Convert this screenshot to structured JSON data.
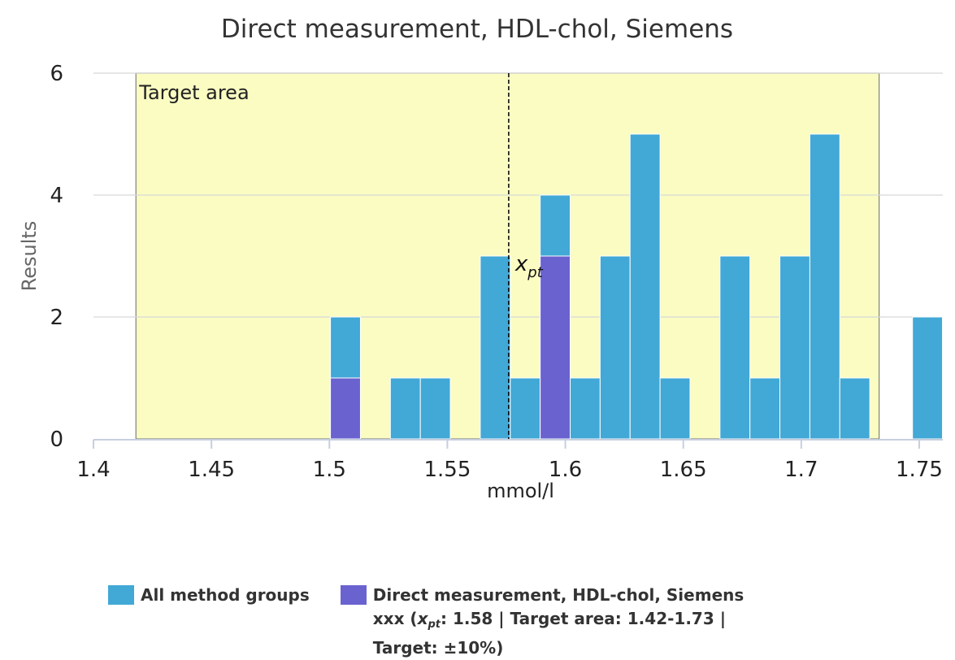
{
  "chart_data": {
    "type": "bar",
    "title": "Direct measurement, HDL-chol, Siemens",
    "xlabel": "mmol/l",
    "ylabel": "Results",
    "xlim": [
      1.4,
      1.76
    ],
    "ylim": [
      0,
      6
    ],
    "x_ticks": [
      "1.4",
      "1.45",
      "1.5",
      "1.55",
      "1.6",
      "1.65",
      "1.7",
      "1.75"
    ],
    "y_ticks": [
      "0",
      "2",
      "4",
      "6"
    ],
    "bin_width": 0.0127,
    "grid": true,
    "target_area": {
      "label": "Target area",
      "from": 1.418,
      "to": 1.733,
      "color": "#fafcc2"
    },
    "xpt": {
      "label": "x",
      "subscript": "pt",
      "value": 1.576
    },
    "series": [
      {
        "name": "All method groups",
        "color": "#42a8d6",
        "bins": [
          {
            "x": 1.5068,
            "value": 2
          },
          {
            "x": 1.5322,
            "value": 1
          },
          {
            "x": 1.5449,
            "value": 1
          },
          {
            "x": 1.5703,
            "value": 3
          },
          {
            "x": 1.583,
            "value": 1
          },
          {
            "x": 1.5957,
            "value": 4
          },
          {
            "x": 1.6084,
            "value": 1
          },
          {
            "x": 1.6211,
            "value": 3
          },
          {
            "x": 1.6338,
            "value": 5
          },
          {
            "x": 1.6465,
            "value": 1
          },
          {
            "x": 1.6719,
            "value": 3
          },
          {
            "x": 1.6846,
            "value": 1
          },
          {
            "x": 1.6973,
            "value": 3
          },
          {
            "x": 1.71,
            "value": 5
          },
          {
            "x": 1.7227,
            "value": 1
          },
          {
            "x": 1.7535,
            "value": 2
          }
        ]
      },
      {
        "name": "Direct measurement, HDL-chol, Siemens",
        "color": "#6a62cf",
        "bins": [
          {
            "x": 1.5068,
            "value": 1
          },
          {
            "x": 1.5957,
            "value": 3
          }
        ]
      }
    ],
    "legend": {
      "position": "bottom",
      "items": [
        {
          "lines": [
            "All method groups"
          ]
        },
        {
          "lines": [
            "Direct measurement, HDL-chol, Siemens",
            "xxx (",
            ": 1.58 | Target area: 1.42-1.73 |",
            "Target: ±10%)"
          ]
        }
      ]
    }
  }
}
